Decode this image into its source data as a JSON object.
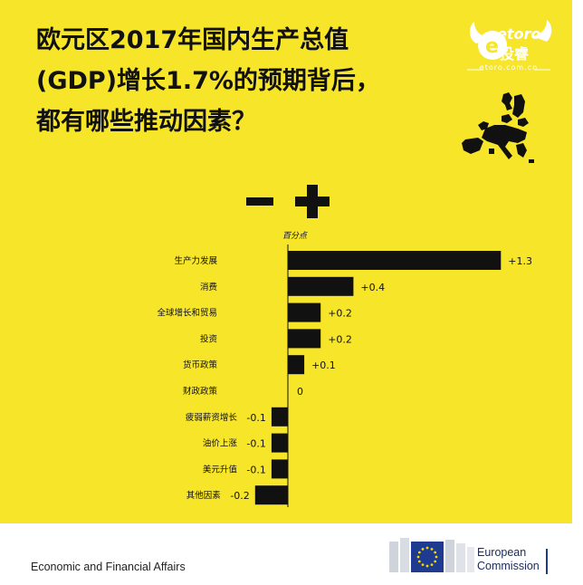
{
  "header": {
    "title_lines": [
      "欧元区2017年国内生产总值",
      "(GDP)增长1.7%的预期背后，",
      "都有哪些推动因素？"
    ]
  },
  "logo": {
    "brand": "etoro",
    "tagline": "投睿",
    "url": "etoro.com.cn"
  },
  "legend_symbols": {
    "minus": "−",
    "plus": "+"
  },
  "chart_data": {
    "type": "bar",
    "orientation": "horizontal",
    "unit_label": "百分点",
    "categories": [
      "生产力发展",
      "消费",
      "全球增长和贸易",
      "投资",
      "货币政策",
      "财政政策",
      "疲弱薪资增长",
      "油价上涨",
      "美元升值",
      "其他因素"
    ],
    "values": [
      1.3,
      0.4,
      0.2,
      0.2,
      0.1,
      0,
      -0.1,
      -0.1,
      -0.1,
      -0.2
    ],
    "value_labels": [
      "+1.3",
      "+0.4",
      "+0.2",
      "+0.2",
      "+0.1",
      "0",
      "-0.1",
      "-0.1",
      "-0.1",
      "-0.2"
    ],
    "xlim": [
      -0.2,
      1.3
    ],
    "grid": false,
    "bar_color": "#111111"
  },
  "footer": {
    "department": "Economic and Financial Affairs",
    "commission_lines": [
      "European",
      "Commission"
    ]
  },
  "colors": {
    "background": "#f7e52a",
    "text": "#111111",
    "eu_blue": "#1f3b8f",
    "eu_star": "#f5d800"
  }
}
